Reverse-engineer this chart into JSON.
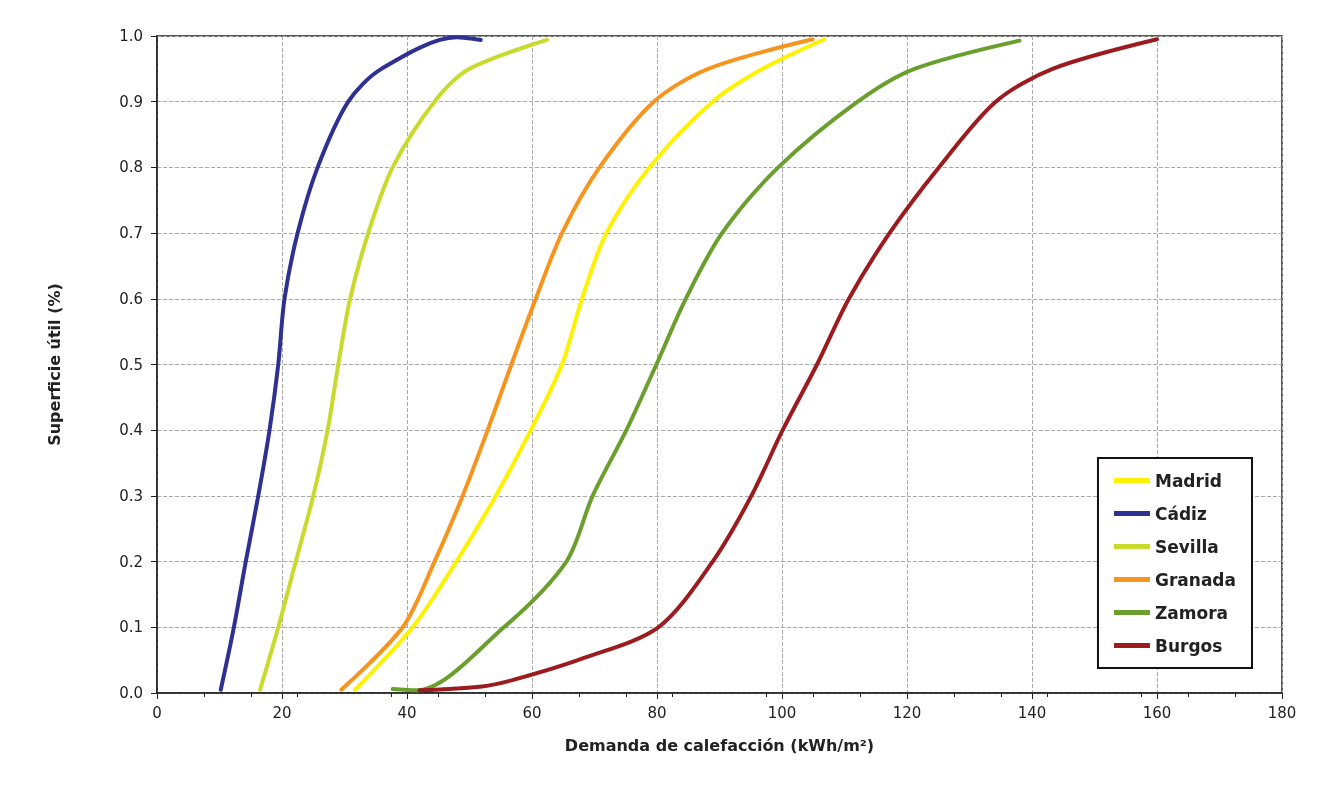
{
  "chart_data": {
    "type": "line",
    "xlabel": "Demanda de calefacción (kWh/m²)",
    "ylabel": "Superficie útil (%)",
    "xlim": [
      0,
      180
    ],
    "xticks": [
      0,
      20,
      40,
      60,
      80,
      100,
      120,
      140,
      160,
      180
    ],
    "ylim": [
      0,
      1
    ],
    "yticks": [
      {
        "value": 0,
        "label": "0.0"
      },
      0.1,
      0.2,
      0.3,
      0.4,
      0.5,
      0.6,
      0.7,
      0.8,
      0.9,
      {
        "value": 1,
        "label": "1.0"
      }
    ],
    "grid": true,
    "legend": "bottom right",
    "marker": "none",
    "line_style": "solid",
    "series": [
      {
        "name": "Madrid",
        "color": "#fff200",
        "x": [
          31.7,
          40.9,
          47.9,
          54.2,
          59.8,
          64.8,
          68,
          71.9,
          78.8,
          88.9,
          96.9,
          106.8
        ],
        "values": [
          0.005,
          0.1,
          0.2,
          0.3,
          0.4,
          0.5,
          0.6,
          0.7,
          0.8,
          0.9,
          0.95,
          0.995
        ]
      },
      {
        "name": "Cádiz",
        "color": "#2e3192",
        "x": [
          10.2,
          12.3,
          14.2,
          16.2,
          18,
          19.4,
          20.4,
          22.5,
          25.7,
          30.6,
          35.9,
          47.9,
          51.8
        ],
        "values": [
          0.005,
          0.1,
          0.2,
          0.3,
          0.4,
          0.5,
          0.6,
          0.7,
          0.8,
          0.9,
          0.95,
          0.998,
          0.994
        ]
      },
      {
        "name": "Sevilla",
        "color": "#c8da2b",
        "x": [
          16.5,
          19.4,
          22.2,
          25,
          27.3,
          29,
          30.9,
          33.8,
          37.7,
          44.4,
          50,
          62.4
        ],
        "values": [
          0.005,
          0.1,
          0.2,
          0.3,
          0.4,
          0.5,
          0.6,
          0.7,
          0.8,
          0.9,
          0.95,
          0.994
        ]
      },
      {
        "name": "Granada",
        "color": "#f7941d",
        "x": [
          29.5,
          39.3,
          44.4,
          48.9,
          52.9,
          56.7,
          60.6,
          64.8,
          70.8,
          79.5,
          88.2,
          104.9
        ],
        "values": [
          0.005,
          0.1,
          0.2,
          0.3,
          0.4,
          0.5,
          0.6,
          0.7,
          0.8,
          0.9,
          0.95,
          0.995
        ]
      },
      {
        "name": "Zamora",
        "color": "#6a9f2e",
        "x": [
          37.7,
          41.5,
          55.5,
          65.5,
          69.7,
          75.1,
          79.9,
          84.6,
          90.4,
          99.4,
          112.1,
          121.2,
          138
        ],
        "values": [
          0.006,
          0.004,
          0.1,
          0.2,
          0.3,
          0.4,
          0.5,
          0.6,
          0.7,
          0.8,
          0.9,
          0.95,
          0.993
        ]
      },
      {
        "name": "Burgos",
        "color": "#9b1b1f",
        "x": [
          42,
          52,
          57,
          67.9,
          80.2,
          88.9,
          95.1,
          100.1,
          105.6,
          110.7,
          117.2,
          125.1,
          134.2,
          143.3,
          160
        ],
        "values": [
          0.004,
          0.01,
          0.02,
          0.052,
          0.1,
          0.2,
          0.3,
          0.4,
          0.5,
          0.6,
          0.7,
          0.8,
          0.9,
          0.95,
          0.995
        ]
      }
    ]
  }
}
